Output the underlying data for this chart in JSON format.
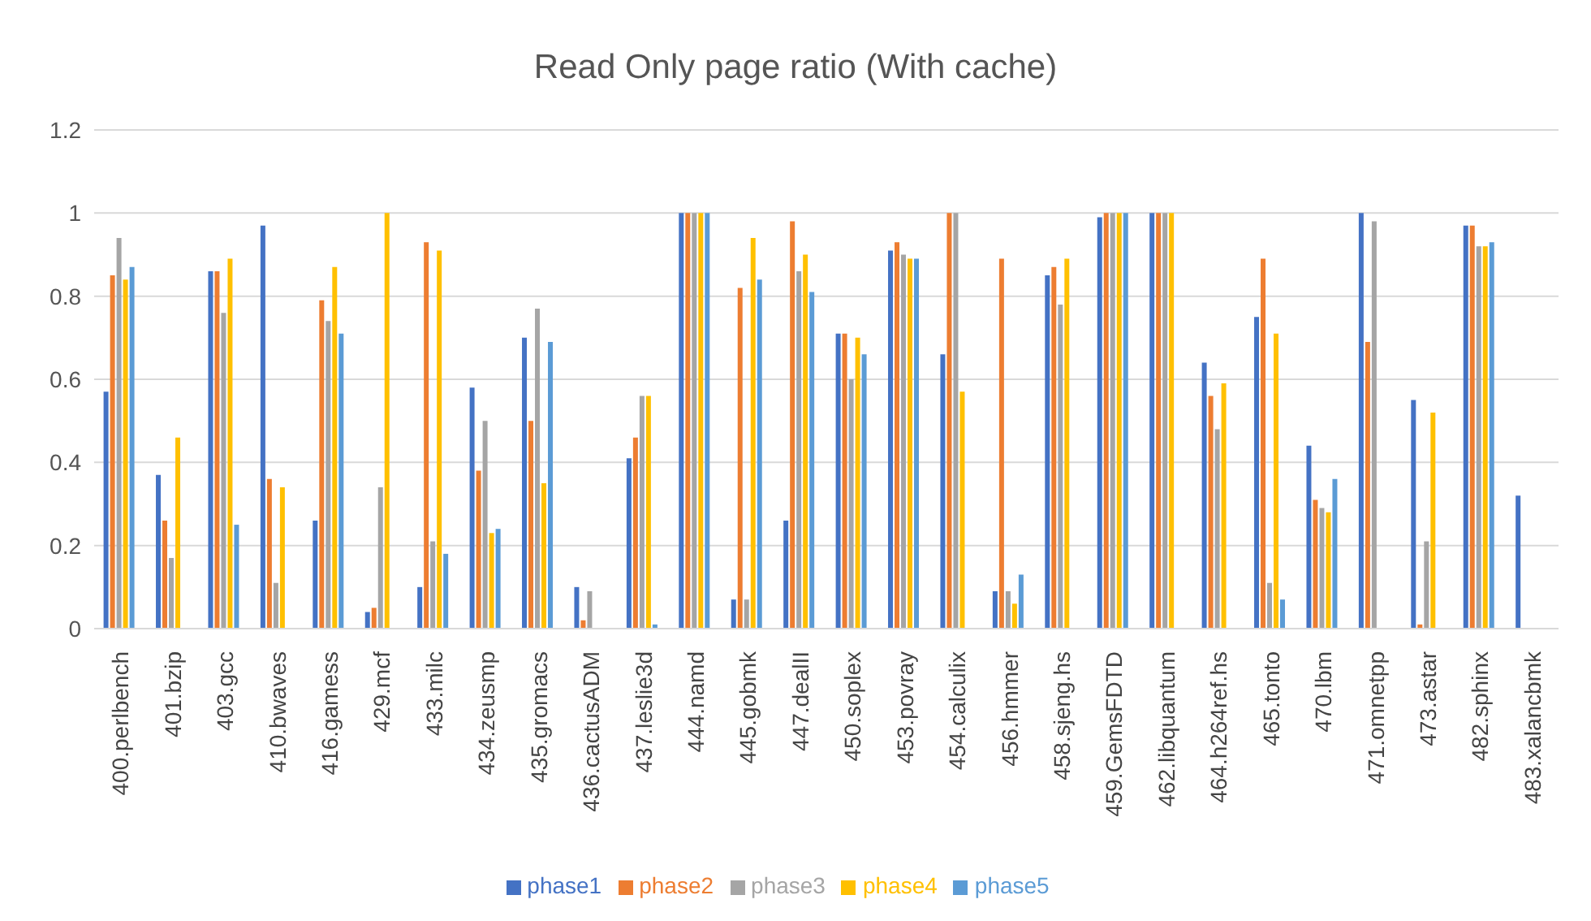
{
  "chart_data": {
    "type": "bar",
    "title": "Read Only page ratio (With cache)",
    "categories": [
      "400.perlbench",
      "401.bzip",
      "403.gcc",
      "410.bwaves",
      "416.gamess",
      "429.mcf",
      "433.milc",
      "434.zeusmp",
      "435.gromacs",
      "436.cactusADM",
      "437.leslie3d",
      "444.namd",
      "445.gobmk",
      "447.dealII",
      "450.soplex",
      "453.povray",
      "454.calculix",
      "456.hmmer",
      "458.sjeng.hs",
      "459.GemsFDTD",
      "462.libquantum",
      "464.h264ref.hs",
      "465.tonto",
      "470.lbm",
      "471.omnetpp",
      "473.astar",
      "482.sphinx",
      "483.xalancbmk"
    ],
    "series": [
      {
        "name": "phase1",
        "color": "#4472c4",
        "values": [
          0.57,
          0.37,
          0.86,
          0.97,
          0.26,
          0.04,
          0.1,
          0.58,
          0.7,
          0.1,
          0.41,
          1,
          0.07,
          0.26,
          0.71,
          0.91,
          0.66,
          0.09,
          0.85,
          0.99,
          1,
          0.64,
          0.75,
          0.44,
          1,
          0.55,
          0.97,
          0.32
        ]
      },
      {
        "name": "phase2",
        "color": "#ed7d31",
        "values": [
          0.85,
          0.26,
          0.86,
          0.36,
          0.79,
          0.05,
          0.93,
          0.38,
          0.5,
          0.02,
          0.46,
          1,
          0.82,
          0.98,
          0.71,
          0.93,
          1,
          0.89,
          0.87,
          1,
          1,
          0.56,
          0.89,
          0.31,
          0.69,
          0.01,
          0.97,
          0
        ]
      },
      {
        "name": "phase3",
        "color": "#a5a5a5",
        "values": [
          0.94,
          0.17,
          0.76,
          0.11,
          0.74,
          0.34,
          0.21,
          0.5,
          0.77,
          0.09,
          0.56,
          1,
          0.07,
          0.86,
          0.6,
          0.9,
          1,
          0.09,
          0.78,
          1,
          1,
          0.48,
          0.11,
          0.29,
          0.98,
          0.21,
          0.92,
          0
        ]
      },
      {
        "name": "phase4",
        "color": "#ffc000",
        "values": [
          0.84,
          0.46,
          0.89,
          0.34,
          0.87,
          1,
          0.91,
          0.23,
          0.35,
          0,
          0.56,
          1,
          0.94,
          0.9,
          0.7,
          0.89,
          0.57,
          0.06,
          0.89,
          1,
          1,
          0.59,
          0.71,
          0.28,
          0,
          0.52,
          0.92,
          0
        ]
      },
      {
        "name": "phase5",
        "color": "#5b9bd5",
        "values": [
          0.87,
          0,
          0.25,
          0,
          0.71,
          0,
          0.18,
          0.24,
          0.69,
          0,
          0.01,
          1,
          0.84,
          0.81,
          0.66,
          0.89,
          0,
          0.13,
          0,
          1,
          0,
          0,
          0.07,
          0.36,
          0,
          0,
          0.93,
          0
        ]
      }
    ],
    "ylim": [
      0,
      1.2
    ],
    "yticks": [
      0,
      0.2,
      0.4,
      0.6,
      0.8,
      1,
      1.2
    ],
    "grid": "y",
    "legend": "bottom"
  }
}
